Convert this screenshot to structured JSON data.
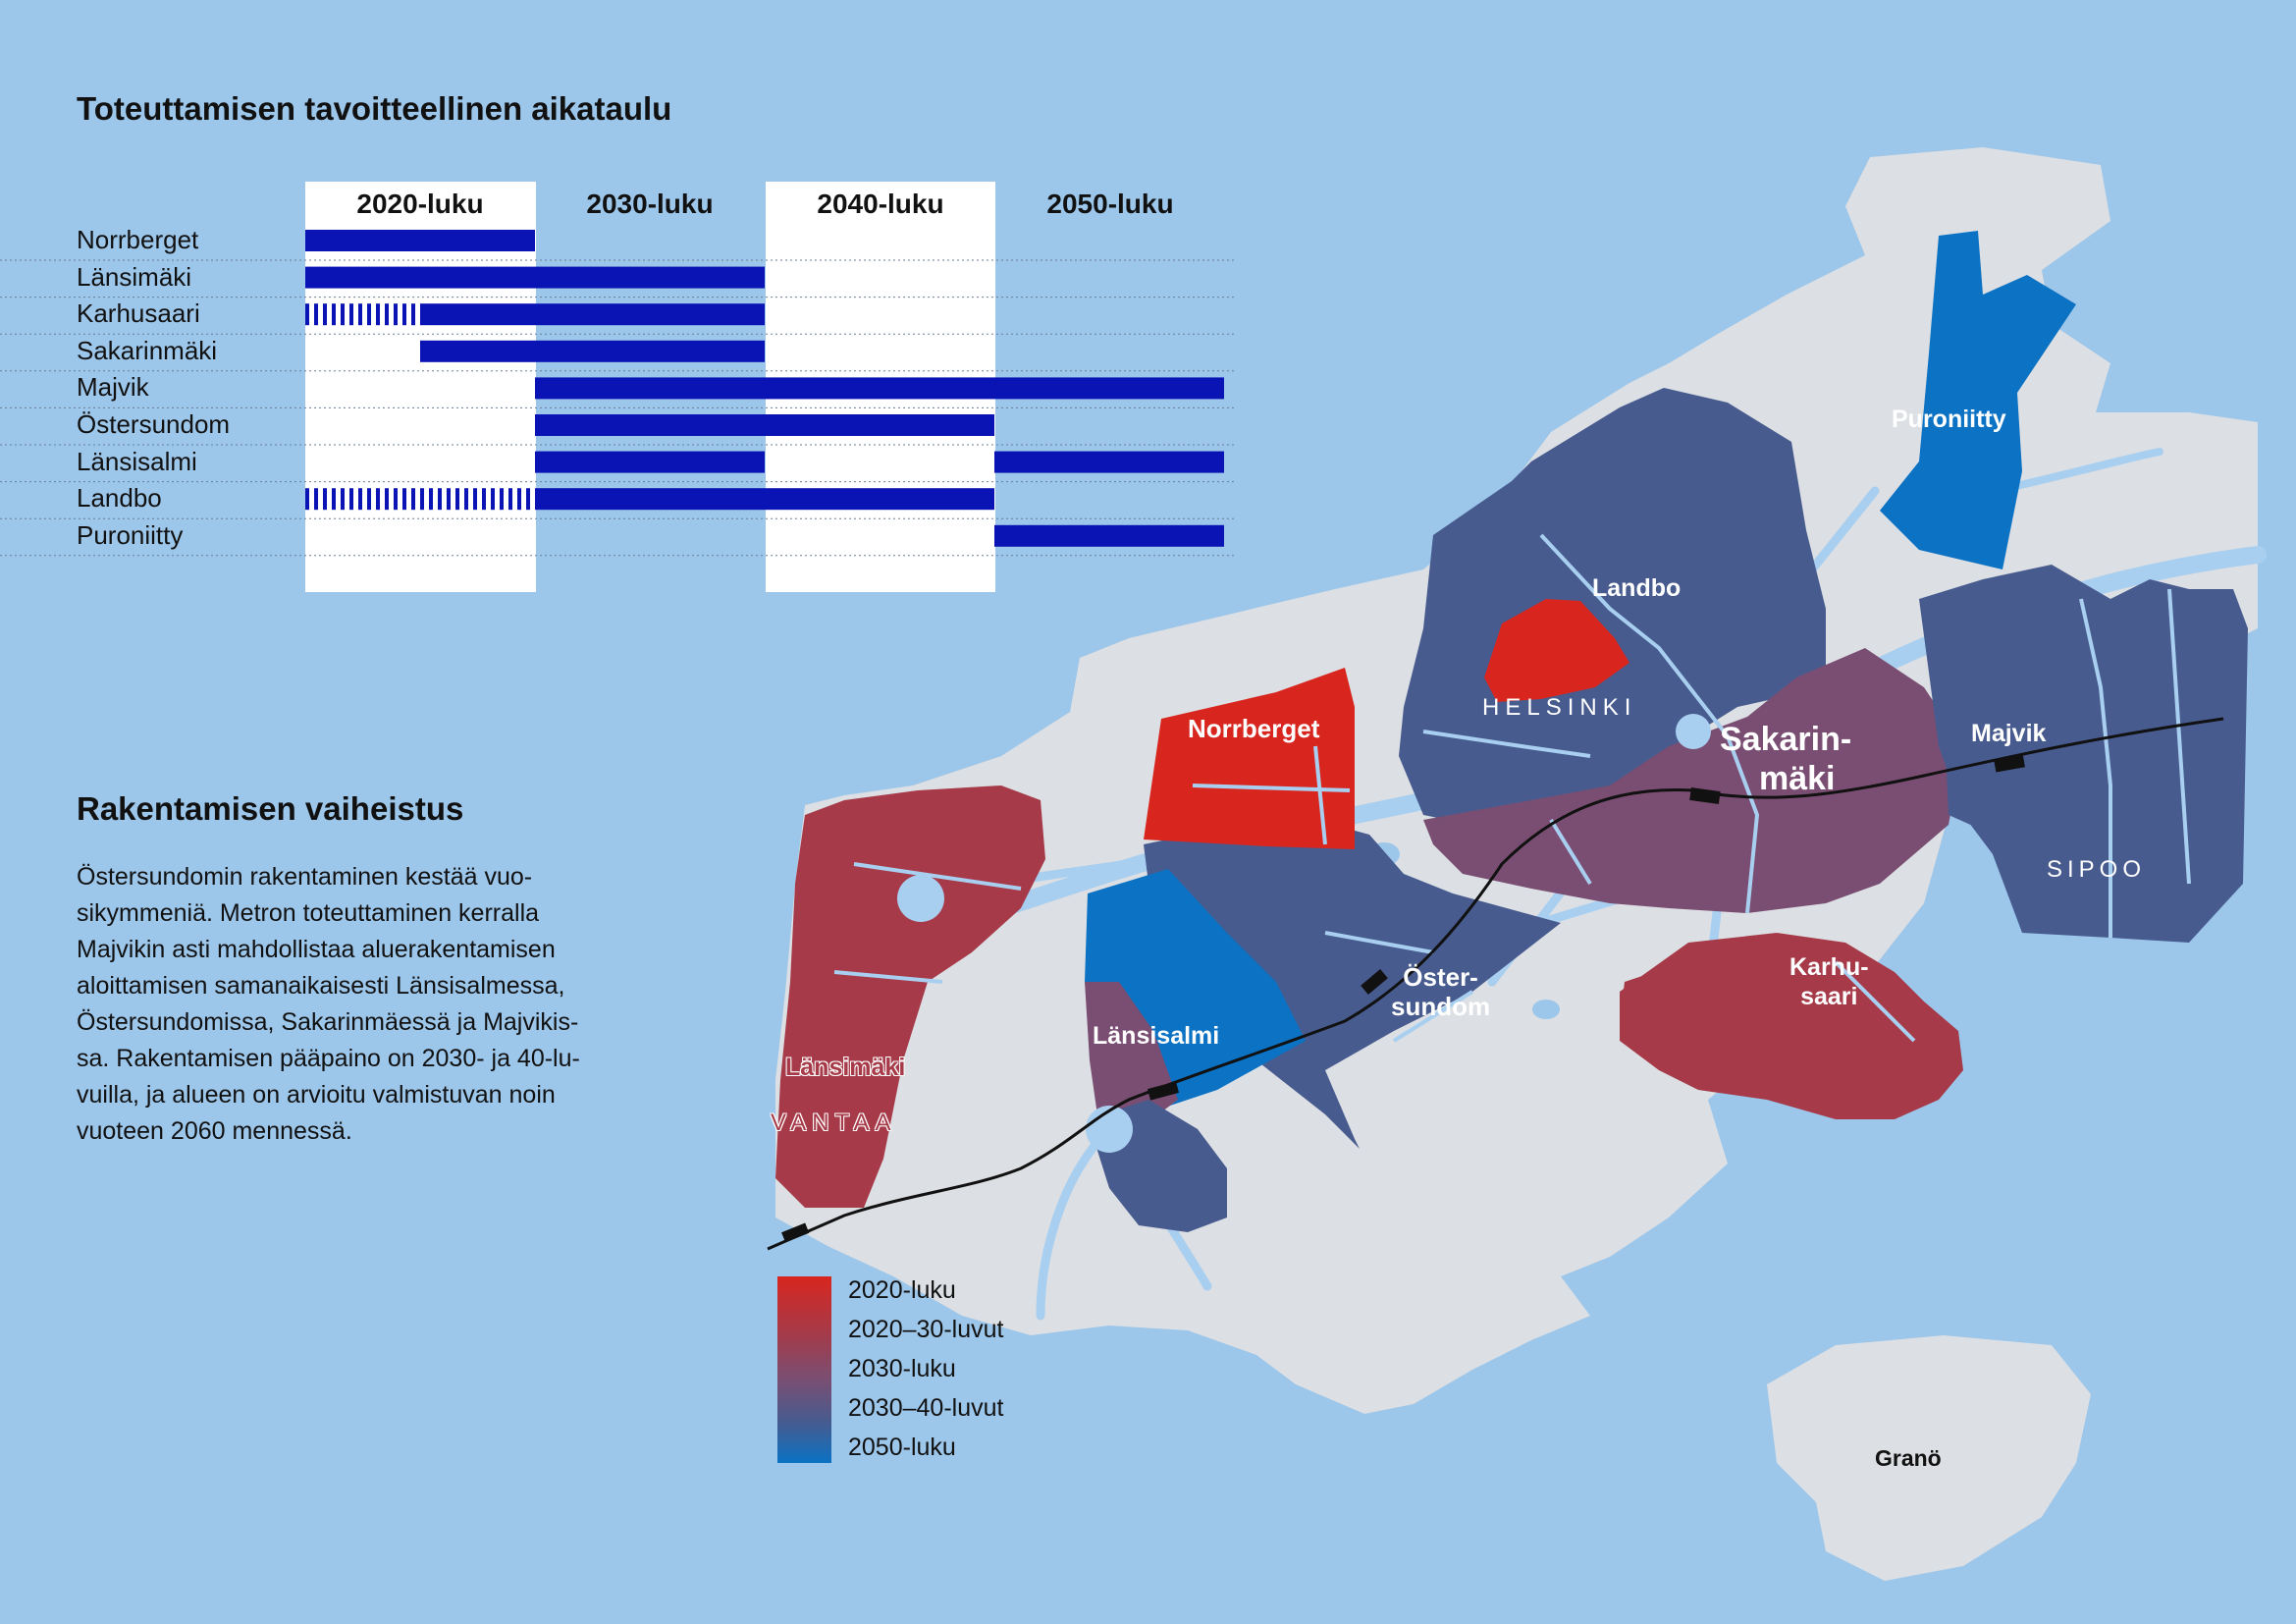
{
  "timeline": {
    "title": "Toteuttamisen tavoitteellinen aikataulu",
    "decades": [
      "2020-luku",
      "2030-luku",
      "2040-luku",
      "2050-luku"
    ],
    "rows": [
      {
        "name": "Norrberget",
        "segments": [
          {
            "start": 2020,
            "end": 2030,
            "style": "solid"
          }
        ]
      },
      {
        "name": "Länsimäki",
        "segments": [
          {
            "start": 2020,
            "end": 2040,
            "style": "solid"
          }
        ]
      },
      {
        "name": "Karhusaari",
        "segments": [
          {
            "start": 2020,
            "end": 2025,
            "style": "dashed"
          },
          {
            "start": 2025,
            "end": 2040,
            "style": "solid"
          }
        ]
      },
      {
        "name": "Sakarinmäki",
        "segments": [
          {
            "start": 2025,
            "end": 2040,
            "style": "solid"
          }
        ]
      },
      {
        "name": "Majvik",
        "segments": [
          {
            "start": 2030,
            "end": 2060,
            "style": "solid"
          }
        ]
      },
      {
        "name": "Östersundom",
        "segments": [
          {
            "start": 2030,
            "end": 2050,
            "style": "solid"
          }
        ]
      },
      {
        "name": "Länsisalmi",
        "segments": [
          {
            "start": 2030,
            "end": 2040,
            "style": "solid"
          },
          {
            "start": 2050,
            "end": 2060,
            "style": "solid"
          }
        ]
      },
      {
        "name": "Landbo",
        "segments": [
          {
            "start": 2020,
            "end": 2030,
            "style": "dashed"
          },
          {
            "start": 2030,
            "end": 2050,
            "style": "solid"
          }
        ]
      },
      {
        "name": "Puroniitty",
        "segments": [
          {
            "start": 2050,
            "end": 2060,
            "style": "solid"
          }
        ]
      }
    ],
    "bar_color": "#0a14b4"
  },
  "phasing": {
    "title": "Rakentamisen vaiheistus",
    "lines": [
      "Östersundomin rakentaminen kestää vuo-",
      "sikymmeniä. Metron toteuttaminen kerralla",
      "Majvikin asti mahdollistaa aluerakentamisen",
      "aloittamisen samanaikaisesti Länsisalmessa,",
      "Östersundomissa, Sakarinmäessä ja Majvikis-",
      "sa. Rakentamisen pääpaino on 2030- ja 40-lu-",
      "vuilla, ja alueen on arvioitu valmistuvan noin",
      "vuoteen 2060 mennessä."
    ]
  },
  "map": {
    "labels": {
      "puroniitty": "Puroniitty",
      "landbo": "Landbo",
      "helsinki": "HELSINKI",
      "norrberget": "Norrberget",
      "sakarinmaki_1": "Sakarin-",
      "sakarinmaki_2": "mäki",
      "majvik": "Majvik",
      "sipoo": "SIPOO",
      "karhusaari_1": "Karhu-",
      "karhusaari_2": "saari",
      "ostersundom_1": "Öster-",
      "ostersundom_2": "sundom",
      "lansisalmi": "Länsisalmi",
      "lansimaki": "Länsimäki",
      "vantaa": "VANTAA",
      "grano": "Granö"
    },
    "colors": {
      "water": "#9cc6ea",
      "land": "#dcdfe3",
      "road": "#a9cff0",
      "c2020": "#d8261f",
      "c2020_30": "#a63a48",
      "c2030": "#7a4e72",
      "c2030_40": "#475b8f",
      "c2050": "#0b72c4"
    }
  },
  "legend": {
    "items": [
      {
        "label": "2020-luku",
        "color": "#d8261f"
      },
      {
        "label": "2020–30-luvut",
        "color": "#a63a48"
      },
      {
        "label": "2030-luku",
        "color": "#7a4e72"
      },
      {
        "label": "2030–40-luvut",
        "color": "#475b8f"
      },
      {
        "label": "2050-luku",
        "color": "#0b72c4"
      }
    ]
  }
}
